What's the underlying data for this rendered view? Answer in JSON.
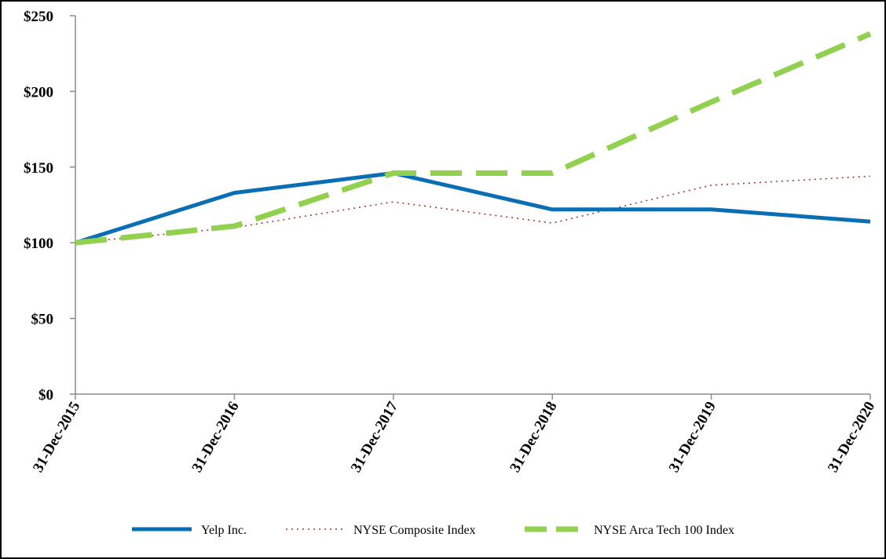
{
  "chart_data": {
    "type": "line",
    "title": "",
    "xlabel": "",
    "ylabel": "",
    "categories": [
      "31-Dec-2015",
      "31-Dec-2016",
      "31-Dec-2017",
      "31-Dec-2018",
      "31-Dec-2019",
      "31-Dec-2020"
    ],
    "ylim": [
      0,
      250
    ],
    "yticks": [
      0,
      50,
      100,
      150,
      200,
      250
    ],
    "ytick_labels": [
      "$0",
      "$50",
      "$100",
      "$150",
      "$200",
      "$250"
    ],
    "grid": false,
    "legend_position": "bottom",
    "series": [
      {
        "name": "Yelp Inc.",
        "values": [
          100,
          133,
          146,
          122,
          122,
          114
        ],
        "color": "#0a6eb4",
        "style": "solid"
      },
      {
        "name": "NYSE Composite Index",
        "values": [
          100,
          110,
          127,
          113,
          138,
          144
        ],
        "color": "#a0392d",
        "style": "dotted"
      },
      {
        "name": "NYSE Arca Tech 100 Index",
        "values": [
          100,
          111,
          146,
          146,
          193,
          238
        ],
        "color": "#92d050",
        "style": "dashed"
      }
    ]
  }
}
